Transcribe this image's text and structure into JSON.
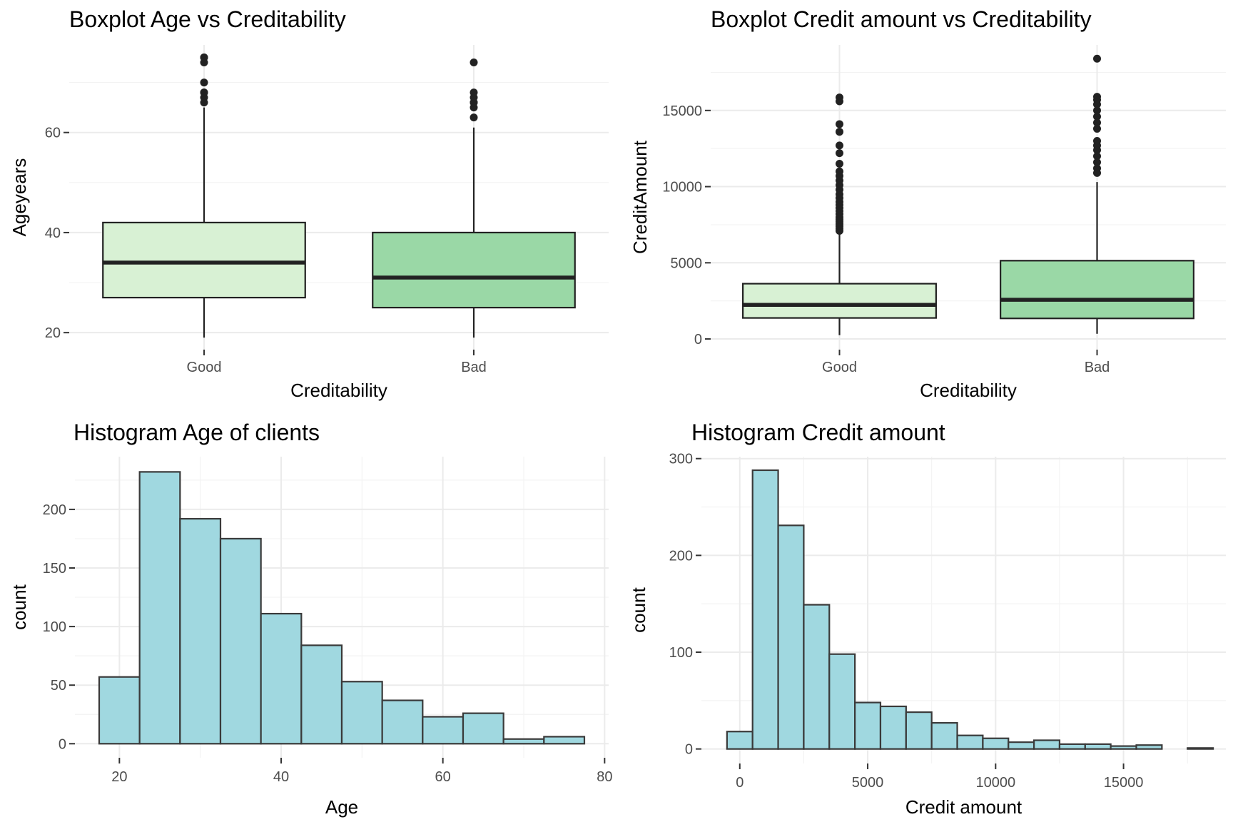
{
  "colors": {
    "box_good": "#d8f1d4",
    "box_bad": "#9ad8a6",
    "hist_fill": "#a0d8e0",
    "panel_bg": "#ffffff",
    "grid": "#ebebeb"
  },
  "chart_data": [
    {
      "id": "age-boxplot",
      "type": "boxplot",
      "title": "Boxplot Age vs Creditability",
      "xlabel": "Creditability",
      "ylabel": "Ageyears",
      "categories": [
        "Good",
        "Bad"
      ],
      "ylim": [
        16.6,
        77.5
      ],
      "yticks": [
        20,
        40,
        60
      ],
      "boxes": [
        {
          "category": "Good",
          "lower_whisker": 19,
          "q1": 27,
          "median": 34,
          "q3": 42,
          "upper_whisker": 65,
          "outliers": [
            66,
            67,
            68,
            68,
            70,
            74,
            75,
            75
          ]
        },
        {
          "category": "Bad",
          "lower_whisker": 19,
          "q1": 25,
          "median": 31,
          "q3": 40,
          "upper_whisker": 61,
          "outliers": [
            63,
            65,
            66,
            66,
            67,
            68,
            74
          ]
        }
      ]
    },
    {
      "id": "credit-boxplot",
      "type": "boxplot",
      "title": "Boxplot Credit amount vs Creditability",
      "xlabel": "Creditability",
      "ylabel": "CreditAmount",
      "categories": [
        "Good",
        "Bad"
      ],
      "ylim": [
        -700,
        19300
      ],
      "yticks": [
        0,
        5000,
        10000,
        15000
      ],
      "boxes": [
        {
          "category": "Good",
          "lower_whisker": 250,
          "q1": 1380,
          "median": 2240,
          "q3": 3630,
          "upper_whisker": 7000,
          "outliers": [
            7100,
            7250,
            7400,
            7550,
            7700,
            7850,
            8000,
            8200,
            8400,
            8600,
            8800,
            9000,
            9250,
            9500,
            9800,
            10100,
            10400,
            10700,
            11000,
            11500,
            12200,
            12700,
            13600,
            14100,
            15600,
            15850
          ]
        },
        {
          "category": "Bad",
          "lower_whisker": 340,
          "q1": 1350,
          "median": 2570,
          "q3": 5140,
          "upper_whisker": 10300,
          "outliers": [
            10900,
            11200,
            11600,
            12000,
            12400,
            12700,
            13000,
            13800,
            14200,
            14600,
            15000,
            15400,
            15700,
            15900,
            18400
          ]
        }
      ]
    },
    {
      "id": "age-histogram",
      "type": "histogram",
      "title": "Histogram Age of clients",
      "xlabel": "Age",
      "ylabel": "count",
      "xlim": [
        14.5,
        80.5
      ],
      "ylim": [
        -12,
        245
      ],
      "xticks": [
        20,
        40,
        60,
        80
      ],
      "yticks": [
        0,
        50,
        100,
        150,
        200
      ],
      "bin_edges": [
        17.5,
        22.5,
        27.5,
        32.5,
        37.5,
        42.5,
        47.5,
        52.5,
        57.5,
        62.5,
        67.5,
        72.5,
        77.5
      ],
      "counts": [
        57,
        232,
        192,
        175,
        111,
        84,
        53,
        37,
        23,
        26,
        4,
        6
      ]
    },
    {
      "id": "credit-histogram",
      "type": "histogram",
      "title": "Histogram Credit amount",
      "xlabel": "Credit amount",
      "ylabel": "count",
      "xlim": [
        -1500,
        19000
      ],
      "ylim": [
        -15,
        302
      ],
      "xticks": [
        0,
        5000,
        10000,
        15000
      ],
      "yticks": [
        0,
        100,
        200,
        300
      ],
      "bin_edges": [
        -500,
        500,
        1500,
        2500,
        3500,
        4500,
        5500,
        6500,
        7500,
        8500,
        9500,
        10500,
        11500,
        12500,
        13500,
        14500,
        15500,
        16500,
        17500,
        18500
      ],
      "counts": [
        18,
        288,
        231,
        149,
        98,
        48,
        44,
        38,
        27,
        14,
        11,
        7,
        9,
        5,
        5,
        3,
        4,
        0,
        1
      ]
    }
  ]
}
